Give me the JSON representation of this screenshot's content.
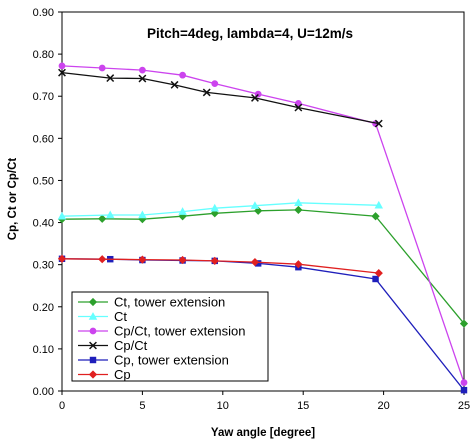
{
  "chart_data": {
    "type": "line",
    "title": "Pitch=4deg, lambda=4, U=12m/s",
    "xlabel": "Yaw angle [degree]",
    "ylabel": "Cp, Ct or Cp/Ct",
    "xlim": [
      0,
      25
    ],
    "ylim": [
      0,
      0.9
    ],
    "xticks": [
      "0",
      "5",
      "10",
      "15",
      "20",
      "25"
    ],
    "yticks": [
      "0.00",
      "0.10",
      "0.20",
      "0.30",
      "0.40",
      "0.50",
      "0.60",
      "0.70",
      "0.80",
      "0.90"
    ],
    "grid": false,
    "legend_position": "bottom-left",
    "series": [
      {
        "name": "Ct, tower extension",
        "color": "#2ca02c",
        "marker": "diamond",
        "x": [
          0,
          2.5,
          5,
          7.5,
          9.5,
          12.2,
          14.7,
          19.5,
          25
        ],
        "y": [
          0.408,
          0.409,
          0.408,
          0.415,
          0.422,
          0.428,
          0.43,
          0.415,
          0.16
        ]
      },
      {
        "name": "Ct",
        "color": "#66ffff",
        "marker": "triangle",
        "x": [
          0,
          3,
          5,
          7.5,
          9.5,
          12,
          14.7,
          19.7
        ],
        "y": [
          0.415,
          0.418,
          0.418,
          0.426,
          0.434,
          0.44,
          0.447,
          0.441
        ]
      },
      {
        "name": "Cp/Ct, tower extension",
        "color": "#cc44ee",
        "marker": "circle",
        "x": [
          0,
          2.5,
          5,
          7.5,
          9.5,
          12.2,
          14.7,
          19.5,
          25
        ],
        "y": [
          0.772,
          0.767,
          0.762,
          0.75,
          0.73,
          0.705,
          0.683,
          0.635,
          0.02
        ]
      },
      {
        "name": "Cp/Ct",
        "color": "#111111",
        "marker": "x",
        "x": [
          0,
          3,
          5,
          7,
          9,
          12,
          14.7,
          19.7
        ],
        "y": [
          0.756,
          0.743,
          0.742,
          0.727,
          0.709,
          0.696,
          0.673,
          0.635
        ]
      },
      {
        "name": "Cp, tower extension",
        "color": "#1f1fbb",
        "marker": "square",
        "x": [
          0,
          3,
          5,
          7.5,
          9.5,
          12.2,
          14.7,
          19.5,
          25
        ],
        "y": [
          0.314,
          0.313,
          0.311,
          0.31,
          0.309,
          0.303,
          0.294,
          0.266,
          0.002
        ]
      },
      {
        "name": "Cp",
        "color": "#e02020",
        "marker": "diamond",
        "x": [
          0,
          2.5,
          5,
          7.5,
          9.5,
          12,
          14.7,
          19.7
        ],
        "y": [
          0.314,
          0.313,
          0.312,
          0.311,
          0.309,
          0.306,
          0.301,
          0.28
        ]
      }
    ]
  }
}
